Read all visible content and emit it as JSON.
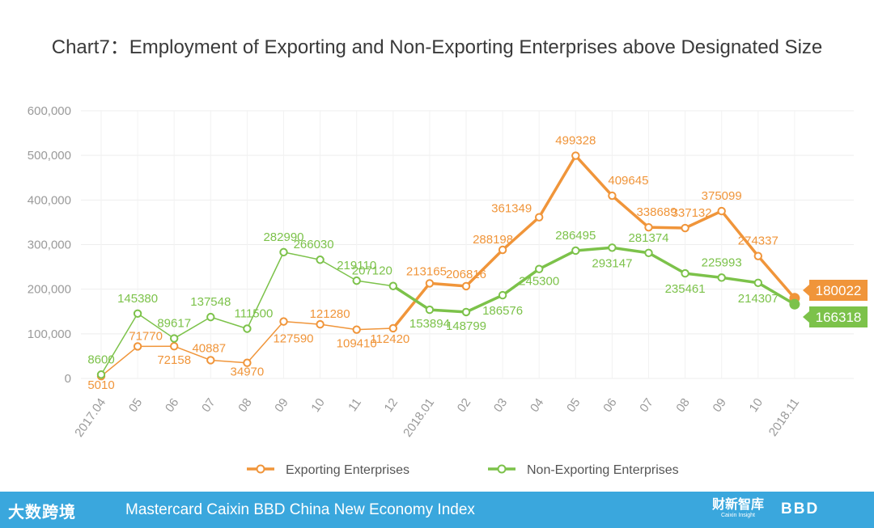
{
  "title": "Chart7：Employment of Exporting and Non-Exporting Enterprises above Designated Size",
  "chart_data": {
    "type": "line",
    "title": "Chart7：Employment of Exporting and Non-Exporting Enterprises above Designated Size",
    "categories": [
      "2017.04",
      "05",
      "06",
      "07",
      "08",
      "09",
      "10",
      "11",
      "12",
      "2018.01",
      "02",
      "03",
      "04",
      "05",
      "06",
      "07",
      "08",
      "09",
      "10",
      "2018.11"
    ],
    "y_tick_labels": [
      "0",
      "100,000",
      "200,000",
      "300,000",
      "400,000",
      "500,000",
      "600,000"
    ],
    "ylim": [
      0,
      600000
    ],
    "xlabel": "",
    "ylabel": "",
    "grid": true,
    "legend_position": "bottom",
    "series": [
      {
        "name": "Exporting Enterprises",
        "color": "#f0953a",
        "values": [
          5010,
          71770,
          72158,
          40887,
          34970,
          127590,
          121280,
          109410,
          112420,
          213165,
          206816,
          288198,
          361349,
          499328,
          409645,
          338689,
          337132,
          375099,
          274337,
          180022
        ],
        "labels": [
          "5010",
          "71770",
          "72158",
          "40887",
          "34970",
          "127590",
          "121280",
          "109410",
          "112420",
          "213165",
          "206816",
          "288198",
          "361349",
          "499328",
          "409645",
          "338689",
          "337132",
          "375099",
          "274337",
          "180022"
        ]
      },
      {
        "name": "Non-Exporting Enterprises",
        "color": "#7cc24a",
        "values": [
          8600,
          145380,
          89617,
          137548,
          111500,
          282990,
          266030,
          219110,
          207120,
          153894,
          148799,
          186576,
          245300,
          286495,
          293147,
          281374,
          235461,
          225993,
          214307,
          166318
        ],
        "labels": [
          "8600",
          "145380",
          "89617",
          "137548",
          "111500",
          "282990",
          "266030",
          "219110",
          "207120",
          "153894",
          "148799",
          "186576",
          "245300",
          "286495",
          "293147",
          "281374",
          "235461",
          "225993",
          "214307",
          "166318"
        ]
      }
    ]
  },
  "footer": {
    "logo_left": "大数跨境",
    "text": "Mastercard Caixin BBD China New Economy Index",
    "logo_caixin": "财新智库",
    "logo_caixin_sub": "Caixin Insight",
    "logo_bbd": "BBD"
  }
}
